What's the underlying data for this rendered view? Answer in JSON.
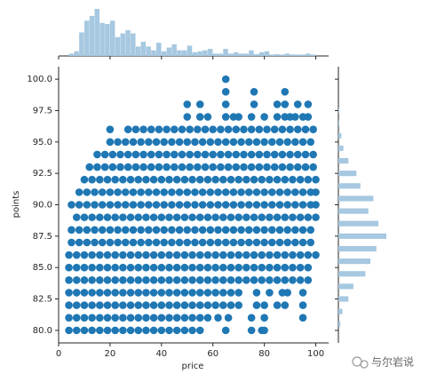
{
  "chart_data": {
    "type": "scatter",
    "x_label": "price",
    "y_label": "points",
    "color": "#1f77b4",
    "xlim": [
      0,
      105
    ],
    "xticks": [
      0,
      20,
      40,
      60,
      80,
      100
    ],
    "ylim": [
      79,
      101
    ],
    "yticks": [
      {
        "value": 80,
        "label": "80.0"
      },
      {
        "value": 82.5,
        "label": "82.5"
      },
      {
        "value": 85,
        "label": "85.0"
      },
      {
        "value": 87.5,
        "label": "87.5"
      },
      {
        "value": 90,
        "label": "90.0"
      },
      {
        "value": 92.5,
        "label": "92.5"
      },
      {
        "value": 95,
        "label": "95.0"
      },
      {
        "value": 97.5,
        "label": "97.5"
      },
      {
        "value": 100,
        "label": "100.0"
      }
    ],
    "rows": [
      {
        "y": 100,
        "x": [
          65
        ]
      },
      {
        "y": 99,
        "x": [
          65,
          76,
          88
        ]
      },
      {
        "y": 98,
        "x": [
          50,
          55,
          65,
          76,
          85,
          88,
          93,
          97
        ]
      },
      {
        "y": 97,
        "x": [
          50,
          55,
          58,
          65,
          68,
          70,
          75,
          80,
          85,
          88,
          90,
          92,
          95,
          97
        ]
      },
      {
        "y": 96,
        "x": [
          20,
          27,
          30,
          33,
          36,
          39,
          42,
          45,
          48,
          51,
          54,
          57,
          60,
          63,
          66,
          69,
          72,
          75,
          78,
          81,
          84,
          87,
          90,
          93,
          96,
          99
        ]
      },
      {
        "y": 95,
        "x": [
          20,
          23,
          26,
          29,
          32,
          35,
          38,
          41,
          44,
          47,
          50,
          53,
          56,
          59,
          62,
          65,
          68,
          71,
          74,
          77,
          80,
          83,
          86,
          89,
          92,
          95,
          98
        ]
      },
      {
        "y": 94,
        "x": [
          15,
          18,
          21,
          24,
          27,
          30,
          33,
          36,
          39,
          42,
          45,
          48,
          51,
          54,
          57,
          60,
          63,
          66,
          69,
          72,
          75,
          78,
          81,
          84,
          87,
          90,
          93,
          96,
          99
        ]
      },
      {
        "y": 93,
        "x": [
          12,
          15,
          18,
          21,
          24,
          27,
          30,
          33,
          36,
          39,
          42,
          45,
          48,
          51,
          54,
          57,
          60,
          63,
          66,
          69,
          72,
          75,
          78,
          81,
          84,
          87,
          90,
          93,
          96,
          99
        ]
      },
      {
        "y": 92,
        "x": [
          10,
          13,
          16,
          19,
          22,
          25,
          28,
          31,
          34,
          37,
          40,
          43,
          46,
          49,
          52,
          55,
          58,
          61,
          64,
          67,
          70,
          73,
          76,
          79,
          82,
          85,
          88,
          91,
          94,
          97,
          100
        ]
      },
      {
        "y": 91,
        "x": [
          8,
          11,
          14,
          17,
          20,
          23,
          26,
          29,
          32,
          35,
          38,
          41,
          44,
          47,
          50,
          53,
          56,
          59,
          62,
          65,
          68,
          71,
          74,
          77,
          80,
          83,
          86,
          89,
          92,
          95,
          98,
          100
        ]
      },
      {
        "y": 90,
        "x": [
          5,
          8,
          11,
          14,
          17,
          20,
          23,
          26,
          29,
          32,
          35,
          38,
          41,
          44,
          47,
          50,
          53,
          56,
          59,
          62,
          65,
          68,
          71,
          74,
          77,
          80,
          83,
          86,
          89,
          92,
          95,
          98,
          100
        ]
      },
      {
        "y": 89,
        "x": [
          7,
          10,
          13,
          16,
          19,
          22,
          25,
          28,
          31,
          34,
          37,
          40,
          43,
          46,
          49,
          52,
          55,
          58,
          61,
          64,
          67,
          70,
          73,
          76,
          79,
          82,
          85,
          88,
          91,
          94,
          97,
          100
        ]
      },
      {
        "y": 88,
        "x": [
          5,
          8,
          11,
          14,
          17,
          20,
          23,
          26,
          29,
          32,
          35,
          38,
          41,
          44,
          47,
          50,
          53,
          56,
          59,
          62,
          65,
          68,
          71,
          74,
          77,
          80,
          83,
          86,
          89,
          92,
          95,
          98
        ]
      },
      {
        "y": 87,
        "x": [
          5,
          8,
          11,
          14,
          17,
          20,
          23,
          26,
          29,
          32,
          35,
          38,
          41,
          44,
          47,
          50,
          53,
          56,
          59,
          62,
          65,
          68,
          71,
          74,
          77,
          80,
          83,
          86,
          89,
          92,
          95,
          98
        ]
      },
      {
        "y": 86,
        "x": [
          4,
          7,
          10,
          13,
          16,
          19,
          22,
          25,
          28,
          31,
          34,
          37,
          40,
          43,
          46,
          49,
          52,
          55,
          58,
          61,
          64,
          67,
          70,
          73,
          76,
          79,
          82,
          85,
          88,
          91,
          94,
          97,
          100
        ]
      },
      {
        "y": 85,
        "x": [
          4,
          7,
          10,
          13,
          16,
          19,
          22,
          25,
          28,
          31,
          34,
          37,
          40,
          43,
          46,
          49,
          52,
          55,
          58,
          61,
          64,
          67,
          70,
          73,
          76,
          79,
          82,
          85,
          88,
          91,
          94,
          97
        ]
      },
      {
        "y": 84,
        "x": [
          4,
          7,
          10,
          13,
          16,
          19,
          22,
          25,
          28,
          31,
          34,
          37,
          40,
          43,
          46,
          49,
          52,
          55,
          58,
          61,
          64,
          67,
          70,
          73,
          76,
          79,
          82,
          85,
          88,
          91,
          94,
          97
        ]
      },
      {
        "y": 83,
        "x": [
          4,
          7,
          10,
          13,
          16,
          19,
          22,
          25,
          28,
          31,
          34,
          37,
          40,
          43,
          46,
          49,
          52,
          55,
          58,
          61,
          64,
          67,
          70,
          77,
          82,
          87,
          89,
          95
        ]
      },
      {
        "y": 82,
        "x": [
          4,
          7,
          10,
          13,
          16,
          19,
          22,
          25,
          28,
          31,
          34,
          37,
          40,
          43,
          46,
          49,
          52,
          55,
          58,
          61,
          64,
          67,
          70,
          77,
          80,
          85,
          88,
          95
        ]
      },
      {
        "y": 81,
        "x": [
          4,
          7,
          10,
          13,
          16,
          19,
          22,
          25,
          28,
          31,
          34,
          37,
          40,
          43,
          46,
          49,
          52,
          55,
          58,
          62,
          66,
          75,
          80,
          95
        ]
      },
      {
        "y": 80,
        "x": [
          4,
          7,
          10,
          13,
          16,
          19,
          22,
          25,
          28,
          31,
          34,
          37,
          40,
          43,
          46,
          49,
          52,
          55,
          65,
          75,
          79,
          80
        ]
      }
    ],
    "marginal_x": {
      "type": "histogram",
      "color": "#a6c8e0",
      "bins": [
        4,
        6,
        8,
        10,
        12,
        14,
        16,
        18,
        20,
        22,
        24,
        26,
        28,
        30,
        32,
        34,
        36,
        38,
        40,
        42,
        44,
        46,
        48,
        50,
        52,
        54,
        56,
        58,
        60,
        62,
        64,
        66,
        68,
        70,
        72,
        74,
        76,
        78,
        80,
        82,
        84,
        86,
        88,
        90,
        92,
        94,
        96,
        98,
        100
      ],
      "counts": [
        5,
        10,
        50,
        75,
        85,
        100,
        70,
        68,
        75,
        40,
        48,
        55,
        48,
        20,
        30,
        20,
        12,
        28,
        10,
        18,
        25,
        12,
        12,
        22,
        8,
        10,
        12,
        15,
        5,
        5,
        15,
        5,
        8,
        5,
        5,
        12,
        4,
        8,
        10,
        3,
        4,
        3,
        5,
        3,
        3,
        3,
        5,
        3
      ]
    },
    "marginal_y": {
      "type": "histogram",
      "color": "#a6c8e0",
      "bins": [
        80,
        81,
        82,
        83,
        84,
        85,
        86,
        87,
        88,
        89,
        90,
        91,
        92,
        93,
        94,
        95,
        96,
        97,
        98,
        99,
        100
      ],
      "counts": [
        2,
        4,
        10,
        15,
        27,
        32,
        38,
        48,
        40,
        30,
        35,
        22,
        18,
        10,
        5,
        3,
        1,
        1,
        0,
        0
      ]
    }
  },
  "watermark": "与尔岩说"
}
